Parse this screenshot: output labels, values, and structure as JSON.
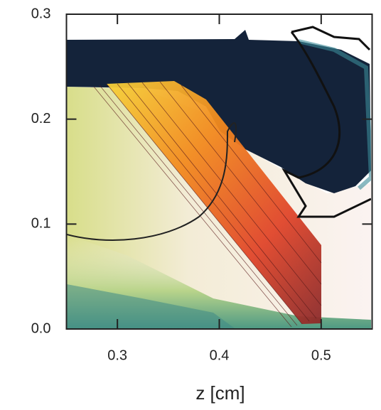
{
  "chart_data": {
    "type": "image",
    "xlabel": "z  [cm]",
    "xlim": [
      0.25,
      0.55
    ],
    "ylim": [
      0,
      0.3
    ],
    "xticks": [
      0.3,
      0.4,
      0.5
    ],
    "yticks": [
      {
        "value": 0,
        "label": "0.0"
      },
      0.1,
      0.2,
      0.3
    ]
  }
}
